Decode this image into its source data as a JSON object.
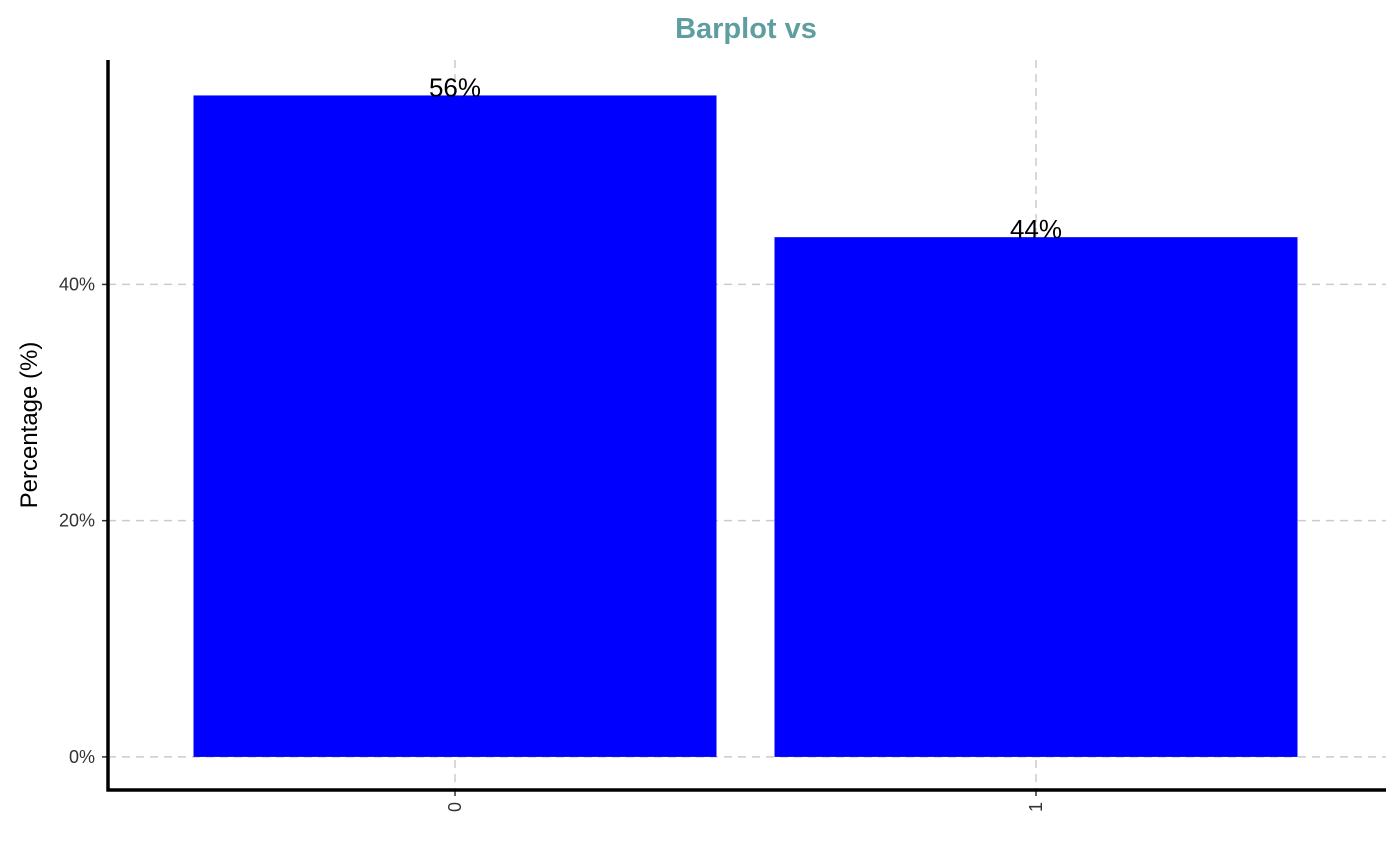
{
  "chart_data": {
    "type": "bar",
    "title": "Barplot vs",
    "xlabel": "",
    "ylabel": "Percentage (%)",
    "categories": [
      "0",
      "1"
    ],
    "values": [
      56,
      44
    ],
    "value_labels": [
      "56%",
      "44%"
    ],
    "ylim": [
      -2.8,
      59
    ],
    "y_ticks": [
      0,
      20,
      40
    ],
    "y_tick_labels": [
      "0%",
      "20%",
      "40%"
    ],
    "x_tick_rotation": -90,
    "grid": true,
    "legend": "none",
    "colors": {
      "bar": "#0000ff",
      "title": "#5f9ea0",
      "axis": "#000000",
      "grid": "#cccccc"
    }
  }
}
